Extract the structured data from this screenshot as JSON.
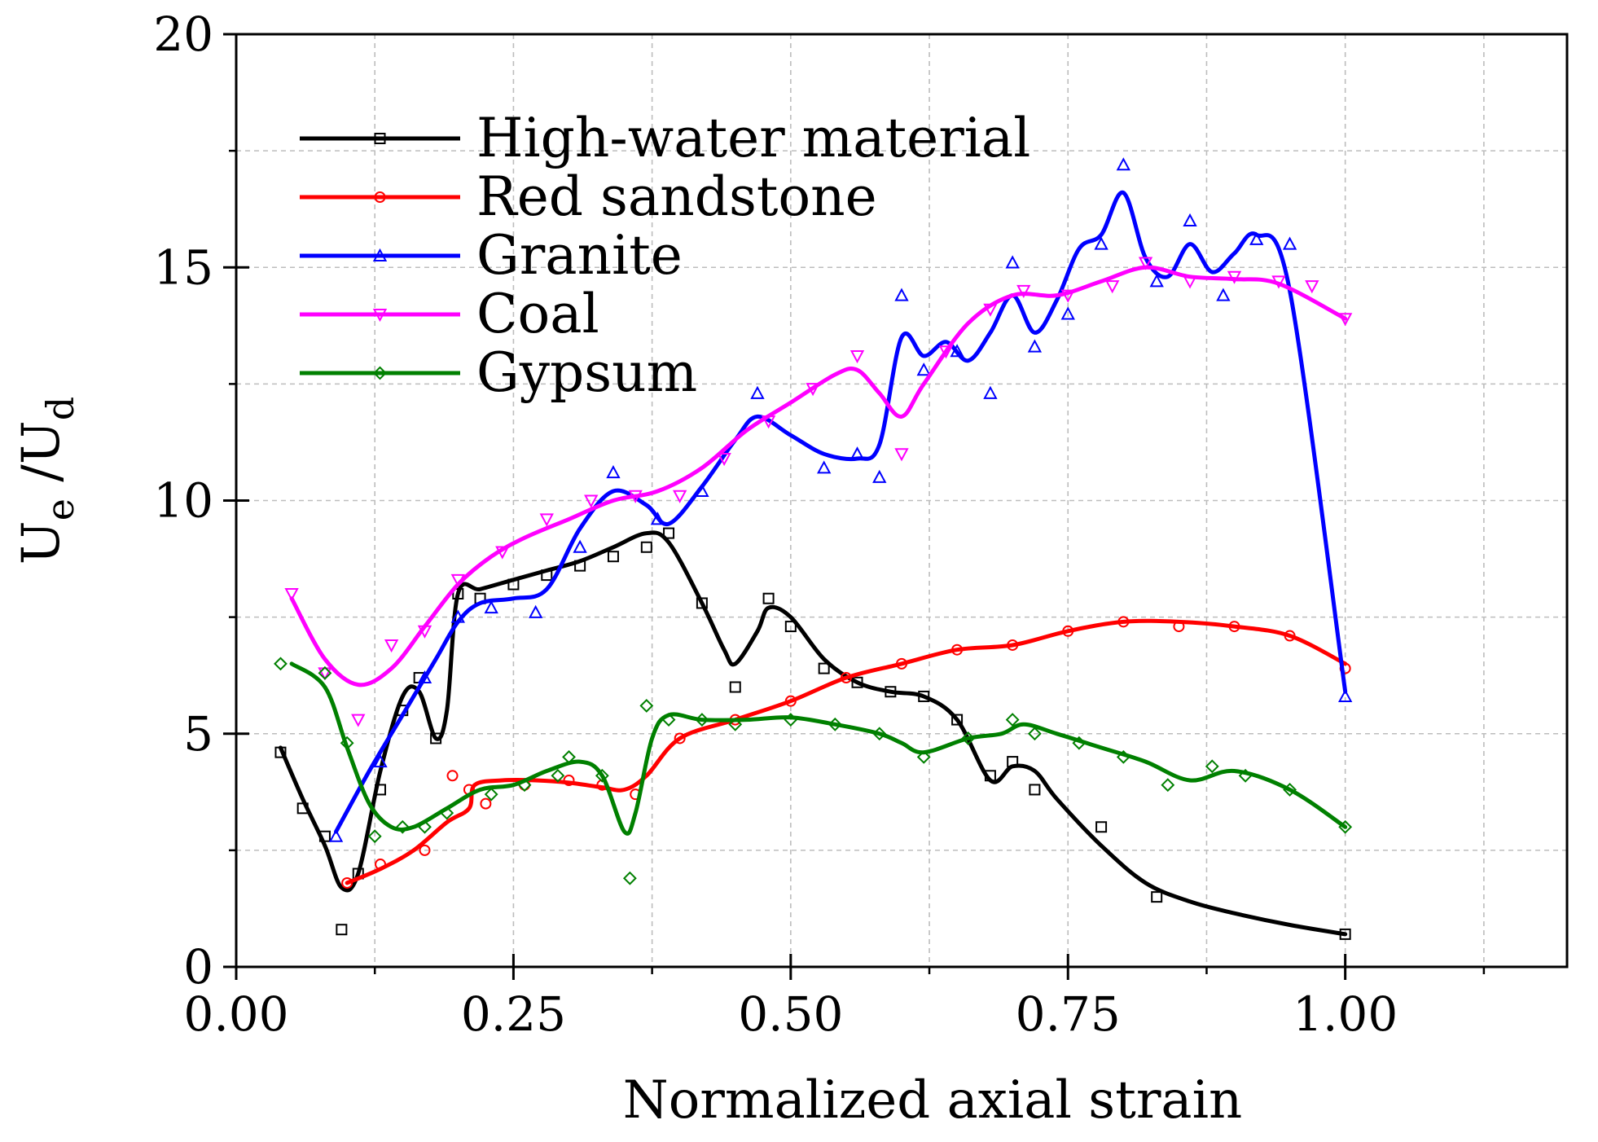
{
  "chart_data": {
    "type": "line",
    "title": "",
    "xlabel": "Normalized axial strain",
    "ylabel_main": "U",
    "ylabel_sub_e": "e",
    "ylabel_mid": " /U",
    "ylabel_sub_d": "d",
    "xlim": [
      0,
      1.2
    ],
    "ylim": [
      0,
      20
    ],
    "x_ticks": [
      0.0,
      0.25,
      0.5,
      0.75,
      1.0
    ],
    "x_tick_labels": [
      "0.00",
      "0.25",
      "0.50",
      "0.75",
      "1.00"
    ],
    "y_ticks": [
      0,
      5,
      10,
      15,
      20
    ],
    "y_tick_labels": [
      "0",
      "5",
      "10",
      "15",
      "20"
    ],
    "grid": true,
    "legend_position": "top-left",
    "series": [
      {
        "name": "High-water material",
        "color": "#000000",
        "marker": "square",
        "x": [
          0.04,
          0.06,
          0.08,
          0.095,
          0.11,
          0.13,
          0.15,
          0.165,
          0.18,
          0.19,
          0.2,
          0.22,
          0.25,
          0.28,
          0.31,
          0.34,
          0.37,
          0.39,
          0.42,
          0.44,
          0.45,
          0.47,
          0.48,
          0.5,
          0.53,
          0.56,
          0.59,
          0.62,
          0.65,
          0.68,
          0.7,
          0.72,
          0.74,
          0.78,
          0.82,
          0.86,
          0.9,
          0.95,
          1.0
        ],
        "y": [
          4.7,
          3.6,
          2.6,
          1.7,
          2.0,
          4.2,
          5.8,
          5.9,
          4.9,
          5.5,
          8.0,
          8.1,
          8.3,
          8.5,
          8.7,
          9.0,
          9.3,
          9.1,
          7.8,
          6.8,
          6.5,
          7.2,
          7.7,
          7.5,
          6.6,
          6.1,
          5.9,
          5.8,
          5.3,
          4.0,
          4.3,
          4.2,
          3.6,
          2.6,
          1.8,
          1.4,
          1.15,
          0.9,
          0.7
        ],
        "marker_x": [
          0.04,
          0.06,
          0.08,
          0.095,
          0.11,
          0.13,
          0.15,
          0.165,
          0.18,
          0.2,
          0.22,
          0.25,
          0.28,
          0.31,
          0.34,
          0.37,
          0.39,
          0.42,
          0.45,
          0.48,
          0.5,
          0.53,
          0.56,
          0.59,
          0.62,
          0.65,
          0.68,
          0.7,
          0.72,
          0.78,
          0.83,
          1.0
        ],
        "marker_y": [
          4.6,
          3.4,
          2.8,
          0.8,
          2.0,
          3.8,
          5.5,
          6.2,
          4.9,
          8.0,
          7.9,
          8.2,
          8.4,
          8.6,
          8.8,
          9.0,
          9.3,
          7.8,
          6.0,
          7.9,
          7.3,
          6.4,
          6.1,
          5.9,
          5.8,
          5.3,
          4.1,
          4.4,
          3.8,
          3.0,
          1.5,
          0.7
        ]
      },
      {
        "name": "Red sandstone",
        "color": "#ff0000",
        "marker": "circle",
        "x": [
          0.1,
          0.13,
          0.16,
          0.19,
          0.21,
          0.215,
          0.24,
          0.27,
          0.3,
          0.33,
          0.35,
          0.37,
          0.4,
          0.45,
          0.5,
          0.55,
          0.6,
          0.65,
          0.7,
          0.75,
          0.8,
          0.85,
          0.9,
          0.95,
          1.0
        ],
        "y": [
          1.8,
          2.1,
          2.5,
          3.1,
          3.4,
          3.9,
          4.0,
          4.0,
          3.95,
          3.85,
          3.8,
          4.1,
          4.9,
          5.3,
          5.7,
          6.2,
          6.5,
          6.8,
          6.9,
          7.2,
          7.4,
          7.4,
          7.3,
          7.1,
          6.5
        ],
        "marker_x": [
          0.1,
          0.13,
          0.17,
          0.195,
          0.21,
          0.225,
          0.26,
          0.3,
          0.33,
          0.36,
          0.4,
          0.45,
          0.5,
          0.55,
          0.6,
          0.65,
          0.7,
          0.75,
          0.8,
          0.85,
          0.9,
          0.95,
          1.0
        ],
        "marker_y": [
          1.8,
          2.2,
          2.5,
          4.1,
          3.8,
          3.5,
          3.9,
          4.0,
          3.9,
          3.7,
          4.9,
          5.3,
          5.7,
          6.2,
          6.5,
          6.8,
          6.9,
          7.2,
          7.4,
          7.3,
          7.3,
          7.1,
          6.4
        ]
      },
      {
        "name": "Granite",
        "color": "#0000ff",
        "marker": "triangle",
        "x": [
          0.09,
          0.12,
          0.15,
          0.18,
          0.2,
          0.22,
          0.25,
          0.28,
          0.31,
          0.34,
          0.37,
          0.39,
          0.42,
          0.45,
          0.47,
          0.5,
          0.53,
          0.56,
          0.58,
          0.6,
          0.62,
          0.64,
          0.66,
          0.68,
          0.7,
          0.72,
          0.74,
          0.76,
          0.78,
          0.8,
          0.82,
          0.84,
          0.86,
          0.88,
          0.9,
          0.92,
          0.95,
          1.0
        ],
        "y": [
          2.9,
          4.2,
          5.4,
          6.6,
          7.4,
          7.8,
          7.9,
          8.1,
          9.4,
          10.2,
          9.9,
          9.5,
          10.3,
          11.3,
          11.8,
          11.4,
          11.0,
          10.9,
          11.2,
          13.5,
          13.1,
          13.4,
          13.0,
          13.6,
          14.4,
          13.6,
          14.3,
          15.4,
          15.7,
          16.6,
          15.2,
          14.8,
          15.5,
          14.9,
          15.3,
          15.7,
          14.5,
          5.9
        ],
        "marker_x": [
          0.09,
          0.13,
          0.17,
          0.2,
          0.23,
          0.27,
          0.31,
          0.34,
          0.38,
          0.42,
          0.47,
          0.53,
          0.56,
          0.58,
          0.6,
          0.62,
          0.65,
          0.68,
          0.7,
          0.72,
          0.75,
          0.78,
          0.8,
          0.83,
          0.86,
          0.89,
          0.92,
          0.95,
          1.0
        ],
        "marker_y": [
          2.8,
          4.4,
          6.2,
          7.5,
          7.7,
          7.6,
          9.0,
          10.6,
          9.6,
          10.2,
          12.3,
          10.7,
          11.0,
          10.5,
          14.4,
          12.8,
          13.2,
          12.3,
          15.1,
          13.3,
          14.0,
          15.5,
          17.2,
          14.7,
          16.0,
          14.4,
          15.6,
          15.5,
          5.8
        ]
      },
      {
        "name": "Coal",
        "color": "#ff00ff",
        "marker": "triangle-down",
        "x": [
          0.05,
          0.08,
          0.11,
          0.14,
          0.17,
          0.2,
          0.23,
          0.26,
          0.3,
          0.34,
          0.38,
          0.42,
          0.46,
          0.5,
          0.54,
          0.56,
          0.58,
          0.6,
          0.62,
          0.66,
          0.7,
          0.74,
          0.78,
          0.82,
          0.86,
          0.9,
          0.94,
          1.0
        ],
        "y": [
          7.9,
          6.6,
          6.05,
          6.4,
          7.3,
          8.2,
          8.8,
          9.2,
          9.6,
          10.0,
          10.2,
          10.7,
          11.5,
          12.1,
          12.7,
          12.8,
          12.3,
          11.8,
          12.5,
          13.8,
          14.4,
          14.4,
          14.7,
          15.0,
          14.8,
          14.75,
          14.65,
          13.9
        ],
        "marker_x": [
          0.05,
          0.08,
          0.11,
          0.14,
          0.17,
          0.2,
          0.24,
          0.28,
          0.32,
          0.36,
          0.4,
          0.44,
          0.48,
          0.52,
          0.56,
          0.6,
          0.64,
          0.68,
          0.71,
          0.75,
          0.79,
          0.82,
          0.86,
          0.9,
          0.94,
          0.97,
          1.0
        ],
        "marker_y": [
          8.0,
          6.3,
          5.3,
          6.9,
          7.2,
          8.3,
          8.9,
          9.6,
          10.0,
          10.1,
          10.1,
          10.9,
          11.7,
          12.4,
          13.1,
          11.0,
          13.2,
          14.1,
          14.5,
          14.4,
          14.6,
          15.1,
          14.7,
          14.8,
          14.7,
          14.6,
          13.9
        ]
      },
      {
        "name": "Gypsum",
        "color": "#008000",
        "marker": "diamond",
        "x": [
          0.05,
          0.08,
          0.1,
          0.12,
          0.14,
          0.16,
          0.19,
          0.22,
          0.25,
          0.28,
          0.31,
          0.33,
          0.35,
          0.36,
          0.375,
          0.39,
          0.42,
          0.46,
          0.5,
          0.54,
          0.58,
          0.6,
          0.62,
          0.66,
          0.69,
          0.71,
          0.74,
          0.78,
          0.82,
          0.86,
          0.9,
          0.95,
          1.0
        ],
        "y": [
          6.5,
          6.0,
          4.7,
          3.5,
          3.0,
          3.0,
          3.4,
          3.8,
          3.9,
          4.2,
          4.4,
          4.1,
          2.9,
          3.3,
          4.9,
          5.4,
          5.3,
          5.3,
          5.35,
          5.2,
          5.0,
          4.8,
          4.6,
          4.9,
          5.0,
          5.2,
          5.0,
          4.7,
          4.4,
          4.0,
          4.2,
          3.8,
          3.0
        ],
        "marker_x": [
          0.04,
          0.08,
          0.1,
          0.125,
          0.15,
          0.17,
          0.19,
          0.23,
          0.26,
          0.29,
          0.3,
          0.33,
          0.355,
          0.37,
          0.39,
          0.42,
          0.45,
          0.5,
          0.54,
          0.58,
          0.62,
          0.66,
          0.7,
          0.72,
          0.76,
          0.8,
          0.84,
          0.88,
          0.91,
          0.95,
          1.0
        ],
        "marker_y": [
          6.5,
          6.3,
          4.8,
          2.8,
          3.0,
          3.0,
          3.3,
          3.7,
          3.9,
          4.1,
          4.5,
          4.1,
          1.9,
          5.6,
          5.3,
          5.3,
          5.2,
          5.3,
          5.2,
          5.0,
          4.5,
          4.9,
          5.3,
          5.0,
          4.8,
          4.5,
          3.9,
          4.3,
          4.1,
          3.8,
          3.0
        ]
      }
    ]
  }
}
